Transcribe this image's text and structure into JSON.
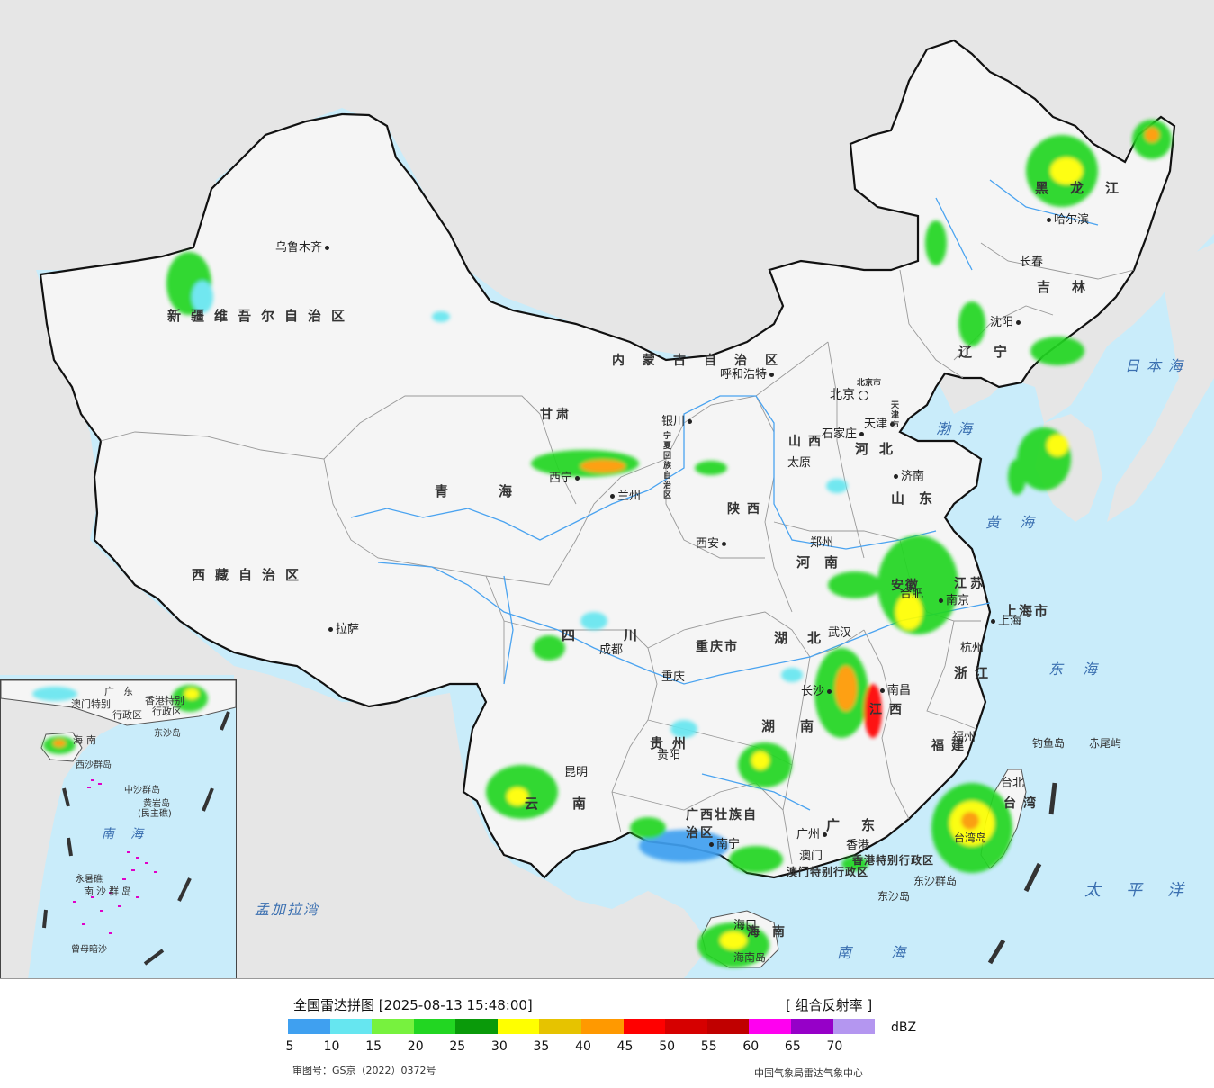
{
  "legend": {
    "title": "全国雷达拼图 [2025-08-13 15:48:00]",
    "product": "[ 组合反射率 ]",
    "unit": "dBZ",
    "approval": "审图号：GS京（2022）0372号",
    "source": "中国气象局雷达气象中心",
    "ticks": [
      "5",
      "10",
      "15",
      "20",
      "25",
      "30",
      "35",
      "40",
      "45",
      "50",
      "55",
      "60",
      "65",
      "70"
    ],
    "colors": [
      "#3fa0f0",
      "#66e6f0",
      "#77f23e",
      "#22d622",
      "#0a9a0a",
      "#ffff00",
      "#e6c300",
      "#ff9900",
      "#ff0000",
      "#d60000",
      "#c00000",
      "#ff00f0",
      "#9600c8",
      "#b496f0"
    ]
  },
  "colors": {
    "ocean": "#c9ecfa",
    "foreign_land": "#e6e6e6",
    "china_land": "#f4f4f4",
    "border": "#111111",
    "river": "#4aa3f0"
  },
  "cities": [
    {
      "name": "乌鲁木齐",
      "icon": "city-dot-icon"
    },
    {
      "name": "拉萨",
      "icon": "city-dot-icon"
    },
    {
      "name": "西宁",
      "icon": "city-dot-icon"
    },
    {
      "name": "兰州",
      "icon": "city-dot-icon"
    },
    {
      "name": "银川",
      "icon": "city-dot-icon"
    },
    {
      "name": "呼和浩特",
      "icon": "city-dot-icon"
    },
    {
      "name": "北京",
      "icon": "capital-icon"
    },
    {
      "name": "天津",
      "icon": "city-dot-icon"
    },
    {
      "name": "石家庄",
      "icon": "city-dot-icon"
    },
    {
      "name": "太原",
      "icon": "city-dot-icon"
    },
    {
      "name": "济南",
      "icon": "city-dot-icon"
    },
    {
      "name": "郑州",
      "icon": "city-dot-icon"
    },
    {
      "name": "西安",
      "icon": "city-dot-icon"
    },
    {
      "name": "成都",
      "icon": "city-dot-icon"
    },
    {
      "name": "重庆",
      "icon": "city-dot-icon"
    },
    {
      "name": "贵阳",
      "icon": "city-dot-icon"
    },
    {
      "name": "昆明",
      "icon": "city-dot-icon"
    },
    {
      "name": "南宁",
      "icon": "city-dot-icon"
    },
    {
      "name": "广州",
      "icon": "city-dot-icon"
    },
    {
      "name": "香港",
      "icon": "city-dot-icon"
    },
    {
      "name": "澳门",
      "icon": "city-dot-icon"
    },
    {
      "name": "海口",
      "icon": "city-dot-icon"
    },
    {
      "name": "长沙",
      "icon": "city-dot-icon"
    },
    {
      "name": "武汉",
      "icon": "city-dot-icon"
    },
    {
      "name": "南昌",
      "icon": "city-dot-icon"
    },
    {
      "name": "合肥",
      "icon": "city-dot-icon"
    },
    {
      "name": "南京",
      "icon": "city-dot-icon"
    },
    {
      "name": "上海",
      "icon": "city-dot-icon"
    },
    {
      "name": "杭州",
      "icon": "city-dot-icon"
    },
    {
      "name": "福州",
      "icon": "city-dot-icon"
    },
    {
      "name": "台北",
      "icon": "city-dot-icon"
    },
    {
      "name": "沈阳",
      "icon": "city-dot-icon"
    },
    {
      "name": "长春",
      "icon": "city-dot-icon"
    },
    {
      "name": "哈尔滨",
      "icon": "city-dot-icon"
    }
  ],
  "provinces": [
    "新疆维吾尔自治区",
    "西藏自治区",
    "青海",
    "甘肃",
    "内蒙古自治区",
    "黑龙江",
    "吉林",
    "辽宁",
    "河北",
    "山西",
    "陕西",
    "河南",
    "山东",
    "四川",
    "湖北",
    "湖南",
    "江西",
    "安徽",
    "江苏",
    "浙江",
    "福建",
    "贵州",
    "云南",
    "广东",
    "广西壮族自治区",
    "重庆市",
    "上海市",
    "海南",
    "台湾",
    "宁夏回族自治区",
    "北京市",
    "天津市",
    "香港特别行政区",
    "澳门特别行政区"
  ],
  "seas": [
    "日本海",
    "渤海",
    "黄海",
    "东海",
    "太平洋",
    "南海",
    "孟加拉湾"
  ],
  "islands": [
    "钓鱼岛",
    "赤尾屿",
    "东沙群岛",
    "东沙岛",
    "台湾岛",
    "海南岛"
  ],
  "inset": {
    "labels": [
      "广东",
      "澳门特别",
      "行政区",
      "香港特别",
      "行政区",
      "海南",
      "东沙岛",
      "中沙群岛",
      "西沙群岛",
      "黄岩岛",
      "(民主礁)",
      "南海",
      "永暑礁",
      "南沙群岛",
      "曾母暗沙"
    ]
  }
}
